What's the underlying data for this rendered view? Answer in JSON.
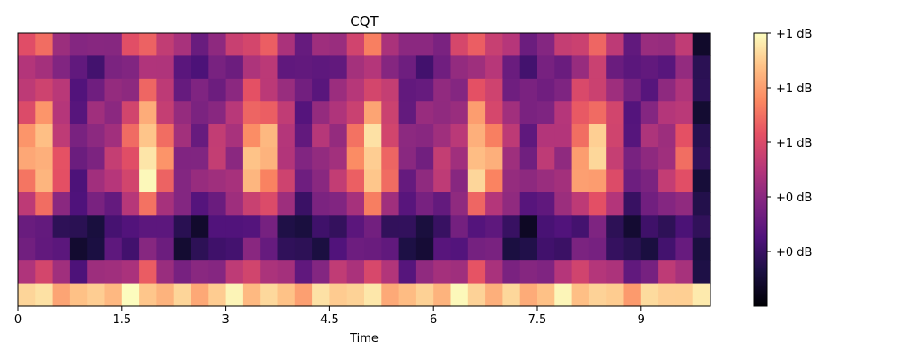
{
  "chart_data": {
    "type": "heatmap",
    "title": "CQT",
    "xlabel": "Time",
    "ylabel": "",
    "xlim": [
      0,
      10
    ],
    "x_ticks": [
      "0",
      "1.5",
      "3",
      "4.5",
      "6",
      "7.5",
      "9"
    ],
    "x_tick_values": [
      0,
      1.5,
      3,
      4.5,
      6,
      7.5,
      9
    ],
    "n_rows": 12,
    "n_cols": 40,
    "colormap": "magma",
    "colorbar": {
      "tick_labels": [
        "+1 dB",
        "+1 dB",
        "+1 dB",
        "+0 dB",
        "+0 dB"
      ],
      "tick_levels": [
        1.0,
        0.8,
        0.6,
        0.4,
        0.2
      ]
    },
    "row_profiles_top_to_bottom": [
      [
        0.55,
        0.7,
        0.35,
        0.4,
        0.55
      ],
      [
        0.35,
        0.55,
        0.25,
        0.3,
        0.4
      ],
      [
        0.45,
        0.65,
        0.3,
        0.35,
        0.45
      ],
      [
        0.55,
        0.8,
        0.3,
        0.45,
        0.45
      ],
      [
        0.6,
        0.95,
        0.3,
        0.5,
        0.45
      ],
      [
        0.6,
        1.0,
        0.3,
        0.5,
        0.45
      ],
      [
        0.6,
        0.95,
        0.3,
        0.5,
        0.45
      ],
      [
        0.45,
        0.7,
        0.25,
        0.35,
        0.4
      ],
      [
        0.2,
        0.35,
        0.1,
        0.2,
        0.3
      ],
      [
        0.25,
        0.4,
        0.1,
        0.2,
        0.3
      ],
      [
        0.5,
        0.6,
        0.3,
        0.45,
        0.5
      ],
      [
        0.95,
        0.9,
        0.85,
        0.9,
        0.95
      ]
    ],
    "profile_phase_points": [
      0.0,
      0.18,
      0.55,
      0.8,
      1.0
    ],
    "period_seconds": 1.6,
    "trailing_dark_start": 9.75,
    "trailing_dark_level": 0.08
  }
}
